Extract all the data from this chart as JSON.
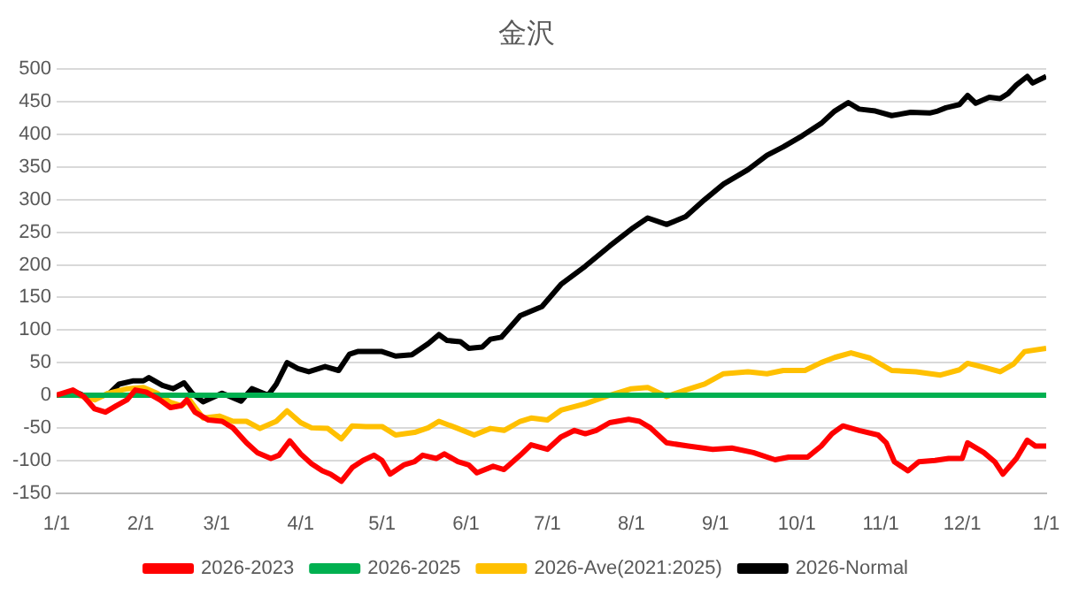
{
  "chart_data": {
    "type": "line",
    "title": "金沢",
    "legend": "bottom",
    "grid": "y",
    "marker": "none",
    "line_style": "solid",
    "xlim": [
      "2026-01-01",
      "2027-01-01"
    ],
    "xticks": [
      {
        "value": "2026-01-01",
        "label": "1/1"
      },
      {
        "value": "2026-02-01",
        "label": "2/1"
      },
      {
        "value": "2026-03-01",
        "label": "3/1"
      },
      {
        "value": "2026-04-01",
        "label": "4/1"
      },
      {
        "value": "2026-05-01",
        "label": "5/1"
      },
      {
        "value": "2026-06-01",
        "label": "6/1"
      },
      {
        "value": "2026-07-01",
        "label": "7/1"
      },
      {
        "value": "2026-08-01",
        "label": "8/1"
      },
      {
        "value": "2026-09-01",
        "label": "9/1"
      },
      {
        "value": "2026-10-01",
        "label": "10/1"
      },
      {
        "value": "2026-11-01",
        "label": "11/1"
      },
      {
        "value": "2026-12-01",
        "label": "12/1"
      },
      {
        "value": "2027-01-01",
        "label": "1/1"
      }
    ],
    "ylim": [
      -150,
      500
    ],
    "yticks": [
      -150,
      -100,
      -50,
      0,
      50,
      100,
      150,
      200,
      250,
      300,
      350,
      400,
      450,
      500
    ],
    "series": [
      {
        "name": "2026-2023",
        "color": "#ff0000",
        "x": [
          "2026-01-01",
          "2026-01-07",
          "2026-01-11",
          "2026-01-15",
          "2026-01-19",
          "2026-01-23",
          "2026-01-27",
          "2026-01-30",
          "2026-02-03",
          "2026-02-08",
          "2026-02-12",
          "2026-02-16",
          "2026-02-18",
          "2026-02-21",
          "2026-02-26",
          "2026-03-03",
          "2026-03-07",
          "2026-03-12",
          "2026-03-16",
          "2026-03-21",
          "2026-03-24",
          "2026-03-28",
          "2026-04-01",
          "2026-04-05",
          "2026-04-09",
          "2026-04-12",
          "2026-04-16",
          "2026-04-20",
          "2026-04-24",
          "2026-04-28",
          "2026-05-01",
          "2026-05-04",
          "2026-05-09",
          "2026-05-13",
          "2026-05-16",
          "2026-05-21",
          "2026-05-24",
          "2026-05-29",
          "2026-06-02",
          "2026-06-05",
          "2026-06-11",
          "2026-06-15",
          "2026-06-21",
          "2026-06-25",
          "2026-07-01",
          "2026-07-06",
          "2026-07-11",
          "2026-07-15",
          "2026-07-19",
          "2026-07-24",
          "2026-07-31",
          "2026-08-04",
          "2026-08-08",
          "2026-08-14",
          "2026-08-22",
          "2026-08-31",
          "2026-09-07",
          "2026-09-15",
          "2026-09-23",
          "2026-09-28",
          "2026-10-05",
          "2026-10-10",
          "2026-10-14",
          "2026-10-18",
          "2026-10-24",
          "2026-10-31",
          "2026-11-03",
          "2026-11-06",
          "2026-11-11",
          "2026-11-15",
          "2026-11-21",
          "2026-11-26",
          "2026-12-01",
          "2026-12-03",
          "2026-12-09",
          "2026-12-13",
          "2026-12-16",
          "2026-12-21",
          "2026-12-25",
          "2026-12-28",
          "2027-01-01"
        ],
        "values": [
          0,
          8,
          -2,
          -21,
          -26,
          -16,
          -7,
          8,
          5,
          -7,
          -19,
          -16,
          -7,
          -26,
          -38,
          -40,
          -50,
          -73,
          -88,
          -97,
          -92,
          -70,
          -90,
          -105,
          -116,
          -121,
          -132,
          -111,
          -100,
          -92,
          -100,
          -121,
          -107,
          -102,
          -92,
          -97,
          -90,
          -102,
          -107,
          -119,
          -109,
          -114,
          -92,
          -76,
          -83,
          -64,
          -54,
          -59,
          -54,
          -42,
          -37,
          -40,
          -50,
          -73,
          -78,
          -83,
          -81,
          -88,
          -99,
          -95,
          -95,
          -78,
          -59,
          -47,
          -54,
          -61,
          -73,
          -102,
          -116,
          -102,
          -100,
          -97,
          -97,
          -73,
          -88,
          -102,
          -121,
          -97,
          -69,
          -78,
          -78
        ]
      },
      {
        "name": "2026-2025",
        "color": "#00b050",
        "x": [
          "2026-01-01",
          "2027-01-01"
        ],
        "values": [
          0,
          0
        ]
      },
      {
        "name": "2026-Ave(2021:2025)",
        "color": "#ffc000",
        "x": [
          "2026-01-01",
          "2026-01-09",
          "2026-01-15",
          "2026-01-20",
          "2026-01-27",
          "2026-02-02",
          "2026-02-07",
          "2026-02-12",
          "2026-02-16",
          "2026-02-19",
          "2026-02-24",
          "2026-03-02",
          "2026-03-07",
          "2026-03-12",
          "2026-03-17",
          "2026-03-23",
          "2026-03-27",
          "2026-04-01",
          "2026-04-05",
          "2026-04-11",
          "2026-04-16",
          "2026-04-20",
          "2026-04-25",
          "2026-05-01",
          "2026-05-06",
          "2026-05-13",
          "2026-05-18",
          "2026-05-22",
          "2026-05-29",
          "2026-06-04",
          "2026-06-10",
          "2026-06-15",
          "2026-06-21",
          "2026-06-25",
          "2026-07-01",
          "2026-07-06",
          "2026-07-15",
          "2026-07-24",
          "2026-08-01",
          "2026-08-07",
          "2026-08-14",
          "2026-08-21",
          "2026-08-28",
          "2026-09-04",
          "2026-09-13",
          "2026-09-20",
          "2026-09-26",
          "2026-10-04",
          "2026-10-10",
          "2026-10-15",
          "2026-10-21",
          "2026-10-28",
          "2026-11-05",
          "2026-11-14",
          "2026-11-23",
          "2026-11-30",
          "2026-12-03",
          "2026-12-09",
          "2026-12-15",
          "2026-12-20",
          "2026-12-24",
          "2027-01-01"
        ],
        "values": [
          0,
          0,
          -7,
          3,
          10,
          12,
          3,
          -11,
          -16,
          -7,
          -35,
          -32,
          -40,
          -40,
          -51,
          -40,
          -24,
          -42,
          -50,
          -51,
          -67,
          -47,
          -48,
          -48,
          -61,
          -57,
          -50,
          -40,
          -51,
          -61,
          -51,
          -54,
          -40,
          -35,
          -38,
          -23,
          -13,
          0,
          10,
          12,
          -2,
          8,
          17,
          33,
          36,
          33,
          38,
          38,
          50,
          58,
          65,
          57,
          38,
          36,
          31,
          39,
          49,
          43,
          36,
          48,
          67,
          72
        ]
      },
      {
        "name": "2026-Normal",
        "color": "#000000",
        "x": [
          "2026-01-01",
          "2026-01-09",
          "2026-01-13",
          "2026-01-20",
          "2026-01-24",
          "2026-01-29",
          "2026-02-02",
          "2026-02-04",
          "2026-02-09",
          "2026-02-13",
          "2026-02-17",
          "2026-02-20",
          "2026-02-24",
          "2026-03-03",
          "2026-03-10",
          "2026-03-14",
          "2026-03-20",
          "2026-03-23",
          "2026-03-27",
          "2026-03-31",
          "2026-04-04",
          "2026-04-10",
          "2026-04-15",
          "2026-04-19",
          "2026-04-22",
          "2026-04-28",
          "2026-05-01",
          "2026-05-06",
          "2026-05-12",
          "2026-05-18",
          "2026-05-22",
          "2026-05-25",
          "2026-05-30",
          "2026-06-02",
          "2026-06-07",
          "2026-06-10",
          "2026-06-14",
          "2026-06-21",
          "2026-06-29",
          "2026-07-06",
          "2026-07-15",
          "2026-07-24",
          "2026-08-01",
          "2026-08-07",
          "2026-08-14",
          "2026-08-21",
          "2026-08-28",
          "2026-09-04",
          "2026-09-13",
          "2026-09-20",
          "2026-09-26",
          "2026-10-03",
          "2026-10-10",
          "2026-10-15",
          "2026-10-20",
          "2026-10-24",
          "2026-10-30",
          "2026-11-05",
          "2026-11-12",
          "2026-11-19",
          "2026-11-22",
          "2026-11-25",
          "2026-11-30",
          "2026-12-03",
          "2026-12-06",
          "2026-12-11",
          "2026-12-15",
          "2026-12-18",
          "2026-12-21",
          "2026-12-25",
          "2026-12-27",
          "2027-01-01"
        ],
        "values": [
          0,
          3,
          -4,
          1,
          17,
          22,
          22,
          27,
          15,
          10,
          19,
          3,
          -10,
          3,
          -9,
          10,
          0,
          17,
          50,
          41,
          36,
          44,
          38,
          63,
          67,
          67,
          67,
          60,
          62,
          79,
          93,
          84,
          82,
          72,
          74,
          86,
          89,
          122,
          136,
          170,
          198,
          229,
          255,
          272,
          262,
          274,
          300,
          324,
          346,
          368,
          381,
          398,
          417,
          436,
          449,
          439,
          436,
          429,
          434,
          433,
          436,
          441,
          446,
          460,
          448,
          457,
          455,
          463,
          476,
          489,
          479,
          489
        ]
      }
    ]
  }
}
